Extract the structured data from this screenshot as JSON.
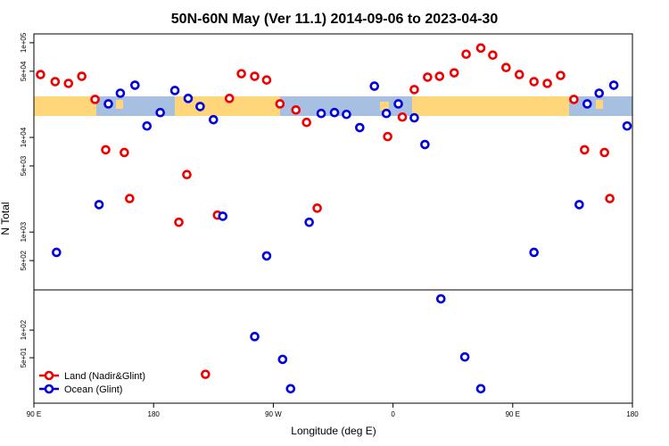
{
  "chart_data": [
    {
      "type": "scatter",
      "title": "50N-60N May (Ver 11.1)   2014-09-06 to 2023-04-30",
      "ylabel": "N Total",
      "log": true,
      "xlim": [
        90,
        540
      ],
      "ylim": [
        245,
        124000
      ],
      "yticks": [
        {
          "value": 100000,
          "label": "1e+05"
        },
        {
          "value": 50000,
          "label": "5e+04"
        },
        {
          "value": 10000,
          "label": "1e+04"
        },
        {
          "value": 5000,
          "label": "5e+03"
        },
        {
          "value": 1000,
          "label": "1e+03"
        },
        {
          "value": 500,
          "label": "5e+02"
        }
      ],
      "series": [
        {
          "color": "#ee0000",
          "x": [
            95,
            106,
            116,
            126,
            136,
            144,
            158,
            162,
            199,
            205,
            228,
            237,
            246,
            256,
            265,
            275,
            287,
            295,
            303,
            356,
            367,
            376,
            386,
            395,
            406,
            415,
            426,
            435,
            445,
            455,
            466,
            476,
            486,
            496,
            504,
            519,
            523
          ],
          "values": [
            46100,
            38800,
            37200,
            44200,
            25200,
            7400,
            6930,
            2260,
            1270,
            4050,
            1510,
            25800,
            47100,
            44200,
            40400,
            22600,
            19500,
            14400,
            1790,
            10200,
            16400,
            32000,
            43300,
            44200,
            48100,
            75700,
            87900,
            74000,
            54700,
            46100,
            38800,
            37200,
            45100,
            25200,
            7400,
            6930,
            2260
          ]
        },
        {
          "color": "#0000dd",
          "x": [
            107,
            139,
            146,
            155,
            166,
            175,
            185,
            196,
            206,
            215,
            225,
            232,
            265,
            297,
            306,
            316,
            325,
            335,
            346,
            355,
            364,
            376,
            384,
            466,
            500,
            506,
            515,
            526,
            536
          ],
          "values": [
            610,
            1950,
            22600,
            29300,
            35600,
            13200,
            18300,
            31300,
            25800,
            21200,
            15400,
            1470,
            560,
            1270,
            17900,
            18300,
            17500,
            12700,
            34800,
            17900,
            22600,
            16100,
            8410,
            610,
            1950,
            22600,
            29300,
            35600,
            13200
          ]
        }
      ]
    },
    {
      "type": "scatter",
      "xlabel": "Longitude (deg E)",
      "log": true,
      "legend": "lower left",
      "xlim": [
        90,
        540
      ],
      "xticks": [
        {
          "value": 90,
          "label": "90 E"
        },
        {
          "value": 180,
          "label": "180"
        },
        {
          "value": 270,
          "label": "90 W"
        },
        {
          "value": 360,
          "label": "0"
        },
        {
          "value": 450,
          "label": "90 E"
        },
        {
          "value": 540,
          "label": "180"
        }
      ],
      "ylim": [
        16,
        274
      ],
      "yticks": [
        {
          "value": 100,
          "label": "1e+02"
        },
        {
          "value": 50,
          "label": "5e+01"
        }
      ],
      "series": [
        {
          "name": "Land (Nadir&Glint)",
          "color": "#ee0000",
          "x": [
            219
          ],
          "values": [
            33
          ]
        },
        {
          "name": "Ocean (Glint)",
          "color": "#0000dd",
          "x": [
            256,
            277,
            283,
            396,
            414,
            426
          ],
          "values": [
            85,
            48,
            23,
            219,
            51,
            23
          ]
        }
      ]
    }
  ]
}
